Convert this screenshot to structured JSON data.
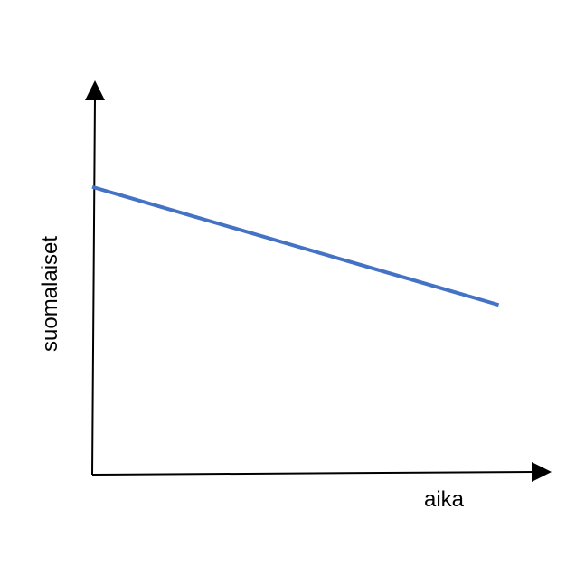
{
  "chart_data": {
    "type": "line",
    "title": "",
    "xlabel": "aika",
    "ylabel": "suomalaiset",
    "grid": false,
    "legend": "none",
    "x": [
      0,
      1
    ],
    "xlim": [
      0,
      1.13
    ],
    "ylim": [
      0,
      1.37
    ],
    "series": [
      {
        "values": [
          1.0,
          0.59
        ],
        "color": "#4472C4"
      }
    ]
  },
  "colors": {
    "axis": "#000000",
    "series_line": "#4472C4",
    "background": "#FFFFFF"
  }
}
